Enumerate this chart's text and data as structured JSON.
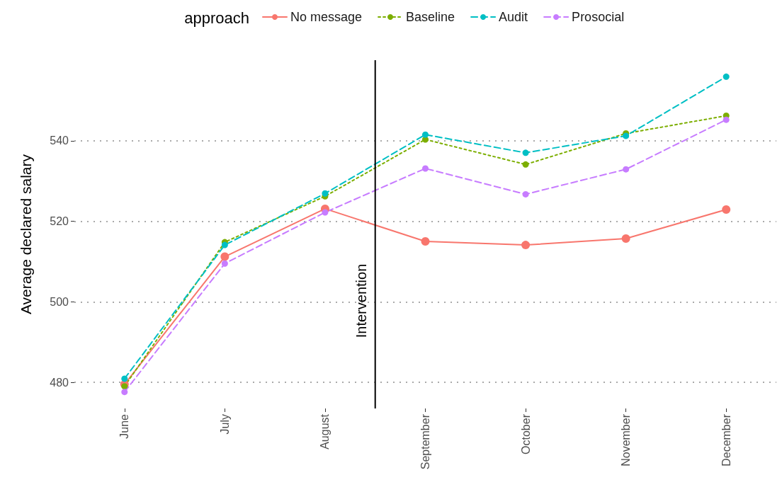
{
  "chart_data": {
    "type": "line",
    "ylabel": "Average declared salary",
    "legend_title": "approach",
    "categories": [
      "June",
      "July",
      "August",
      "September",
      "October",
      "November",
      "December"
    ],
    "series": [
      {
        "name": "No message",
        "color": "#f8766d",
        "line_style": "solid",
        "values": [
          479.5,
          511.2,
          523.1,
          515.0,
          514.1,
          515.7,
          522.9
        ]
      },
      {
        "name": "Baseline",
        "color": "#7cae00",
        "line_style": "dotted",
        "values": [
          479.0,
          514.8,
          526.2,
          540.3,
          534.1,
          541.8,
          546.2
        ]
      },
      {
        "name": "Audit",
        "color": "#00bfc4",
        "line_style": "dashed",
        "values": [
          480.9,
          514.1,
          526.9,
          541.5,
          537.0,
          541.2,
          555.9
        ]
      },
      {
        "name": "Prosocial",
        "color": "#c77cff",
        "line_style": "dashed",
        "values": [
          477.6,
          509.5,
          522.2,
          533.1,
          526.7,
          532.9,
          545.2
        ]
      }
    ],
    "ylim": [
      473.5,
      560
    ],
    "yticks": [
      480,
      500,
      520,
      540
    ],
    "grid": "y",
    "legend": "top",
    "marker": "circle",
    "ref_lines": [
      {
        "axis": "x",
        "value": "September",
        "label": "Intervention",
        "color": "#000000"
      }
    ]
  }
}
